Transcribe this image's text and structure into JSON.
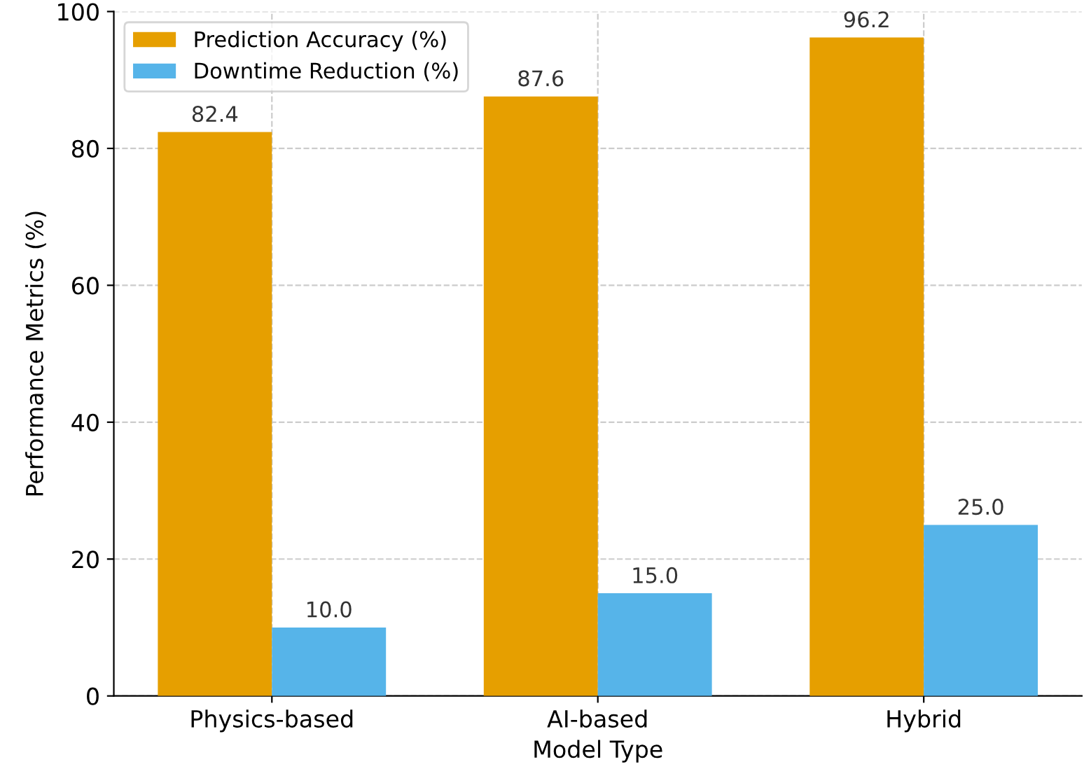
{
  "chart_data": {
    "type": "bar",
    "xlabel": "Model Type",
    "ylabel": "Performance Metrics (%)",
    "categories": [
      "Physics-based",
      "AI-based",
      "Hybrid"
    ],
    "series": [
      {
        "name": "Prediction Accuracy (%)",
        "color": "#e69f00",
        "values": [
          82.4,
          87.6,
          96.2
        ],
        "value_labels": [
          "82.4",
          "87.6",
          "96.2"
        ]
      },
      {
        "name": "Downtime Reduction (%)",
        "color": "#56b4e9",
        "values": [
          10.0,
          15.0,
          25.0
        ],
        "value_labels": [
          "10.0",
          "15.0",
          "25.0"
        ]
      }
    ],
    "ylim": [
      0,
      100
    ],
    "yticks": [
      0,
      20,
      40,
      60,
      80,
      100
    ],
    "grid": true,
    "legend": "top left"
  }
}
